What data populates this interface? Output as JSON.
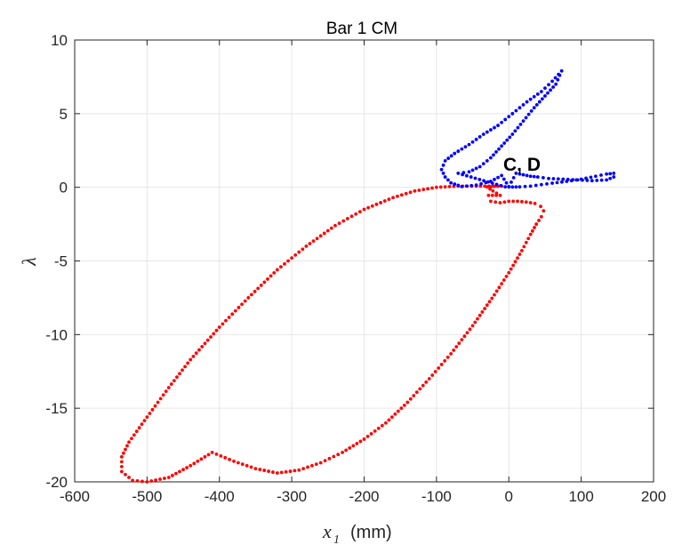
{
  "chart_data": {
    "type": "scatter",
    "title": "Bar 1 CM",
    "xlabel_main": "x",
    "xlabel_sub": "1",
    "xlabel_unit": "(mm)",
    "ylabel": "λ",
    "xlim": [
      -600,
      200
    ],
    "ylim": [
      -20,
      10
    ],
    "xticks": [
      -600,
      -500,
      -400,
      -300,
      -200,
      -100,
      0,
      100,
      200
    ],
    "yticks": [
      -20,
      -15,
      -10,
      -5,
      0,
      5,
      10
    ],
    "grid": true,
    "annotation": "C, D",
    "colors": {
      "red_series": "#ff0000",
      "blue_series": "#0000ff",
      "grid": "#e6e6e6",
      "axis": "#262626"
    },
    "series": [
      {
        "color": "red",
        "points": [
          [
            -10,
            0.08
          ],
          [
            -20,
            0.06
          ],
          [
            -30,
            0.02
          ],
          [
            -22,
            -0.25
          ],
          [
            -12,
            -0.55
          ],
          [
            -28,
            -0.55
          ],
          [
            -25,
            -0.95
          ],
          [
            -12,
            -1.05
          ],
          [
            0,
            -0.95
          ],
          [
            12,
            -0.95
          ],
          [
            24,
            -1.0
          ],
          [
            36,
            -1.1
          ],
          [
            44,
            -1.3
          ],
          [
            48,
            -1.6
          ],
          [
            45,
            -2.0
          ],
          [
            38,
            -2.5
          ],
          [
            30,
            -3.2
          ],
          [
            18,
            -4.3
          ],
          [
            0,
            -5.8
          ],
          [
            -20,
            -7.3
          ],
          [
            -50,
            -9.4
          ],
          [
            -80,
            -11.3
          ],
          [
            -110,
            -13.0
          ],
          [
            -140,
            -14.6
          ],
          [
            -170,
            -16.0
          ],
          [
            -200,
            -17.1
          ],
          [
            -230,
            -18.0
          ],
          [
            -260,
            -18.7
          ],
          [
            -290,
            -19.2
          ],
          [
            -320,
            -19.4
          ],
          [
            -350,
            -19.1
          ],
          [
            -380,
            -18.6
          ],
          [
            -410,
            -18.0
          ],
          [
            -440,
            -18.9
          ],
          [
            -470,
            -19.7
          ],
          [
            -500,
            -20.0
          ],
          [
            -520,
            -19.9
          ],
          [
            -535,
            -19.3
          ],
          [
            -535,
            -18.3
          ],
          [
            -525,
            -17.3
          ],
          [
            -500,
            -15.6
          ],
          [
            -470,
            -13.6
          ],
          [
            -440,
            -11.7
          ],
          [
            -400,
            -9.5
          ],
          [
            -360,
            -7.5
          ],
          [
            -320,
            -5.6
          ],
          [
            -280,
            -4.0
          ],
          [
            -240,
            -2.6
          ],
          [
            -200,
            -1.5
          ],
          [
            -160,
            -0.7
          ],
          [
            -130,
            -0.25
          ],
          [
            -100,
            0.0
          ],
          [
            -70,
            0.08
          ],
          [
            -45,
            0.08
          ]
        ]
      },
      {
        "color": "blue",
        "points": [
          [
            -5,
            0.03
          ],
          [
            5,
            0.02
          ],
          [
            15,
            0.03
          ],
          [
            30,
            0.08
          ],
          [
            45,
            0.18
          ],
          [
            60,
            0.28
          ],
          [
            80,
            0.4
          ],
          [
            100,
            0.55
          ],
          [
            120,
            0.75
          ],
          [
            135,
            0.9
          ],
          [
            145,
            0.95
          ],
          [
            145,
            0.7
          ],
          [
            135,
            0.5
          ],
          [
            115,
            0.45
          ],
          [
            95,
            0.5
          ],
          [
            75,
            0.55
          ],
          [
            55,
            0.6
          ],
          [
            40,
            0.7
          ],
          [
            30,
            0.75
          ],
          [
            20,
            0.85
          ],
          [
            10,
            0.95
          ],
          [
            0,
            0.05
          ],
          [
            -10,
            0.8
          ],
          [
            -25,
            0.4
          ],
          [
            -45,
            0.15
          ],
          [
            -65,
            0.05
          ],
          [
            -80,
            0.3
          ],
          [
            -88,
            0.7
          ],
          [
            -93,
            1.2
          ],
          [
            -88,
            1.8
          ],
          [
            -75,
            2.3
          ],
          [
            -55,
            2.9
          ],
          [
            -35,
            3.6
          ],
          [
            -15,
            4.2
          ],
          [
            5,
            5.0
          ],
          [
            25,
            5.8
          ],
          [
            45,
            6.5
          ],
          [
            60,
            7.2
          ],
          [
            73,
            7.9
          ],
          [
            65,
            7.0
          ],
          [
            50,
            6.2
          ],
          [
            35,
            5.4
          ],
          [
            20,
            4.5
          ],
          [
            5,
            3.6
          ],
          [
            -10,
            2.8
          ],
          [
            -25,
            2.0
          ],
          [
            -40,
            1.4
          ],
          [
            -55,
            1.05
          ],
          [
            -70,
            0.95
          ]
        ]
      }
    ]
  }
}
